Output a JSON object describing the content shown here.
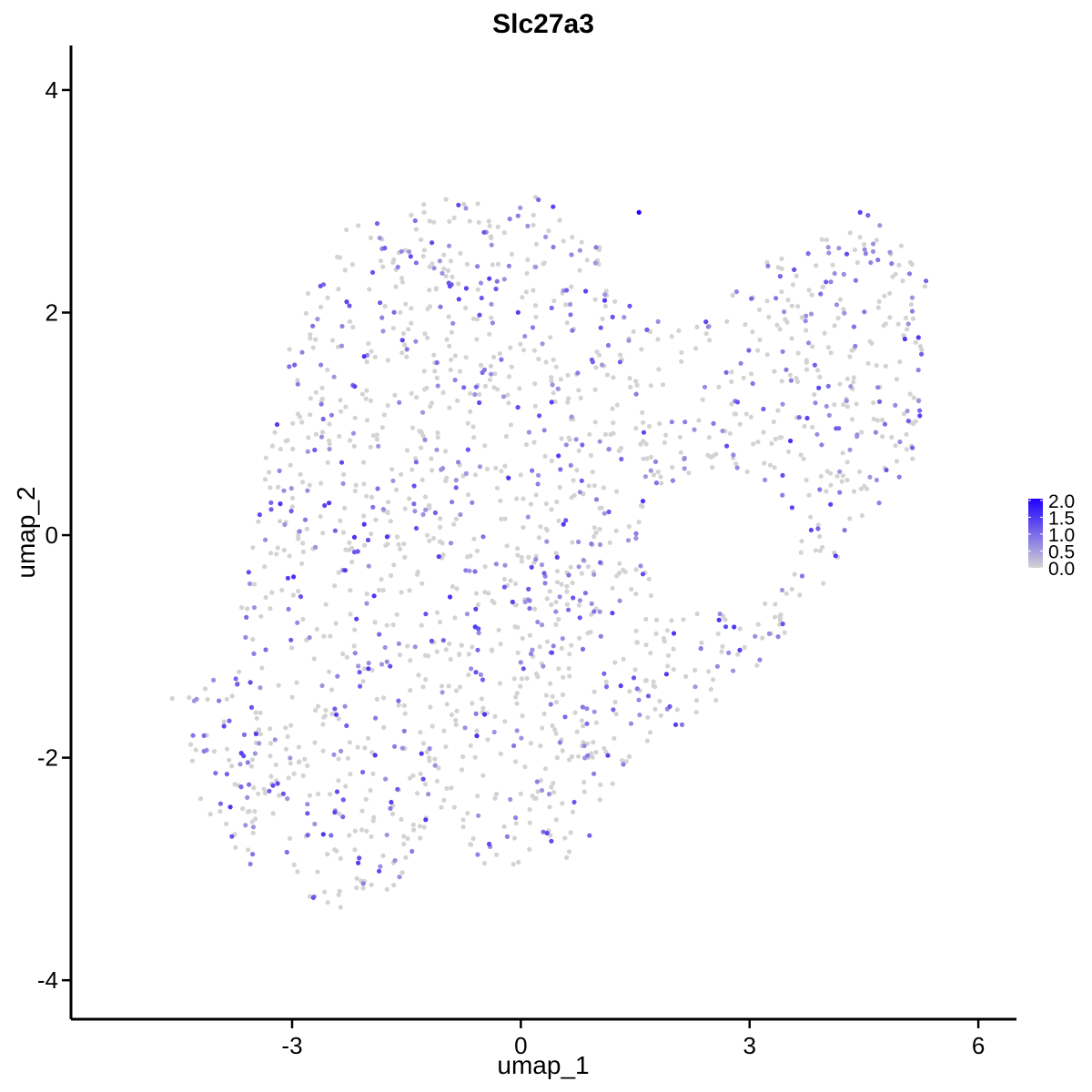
{
  "chart_data": {
    "type": "scatter",
    "title": "Slc27a3",
    "xlabel": "umap_1",
    "ylabel": "umap_2",
    "xlim": [
      -5.9,
      6.5
    ],
    "ylim": [
      -4.35,
      4.4
    ],
    "x_ticks": [
      -3,
      0,
      3,
      6
    ],
    "y_ticks": [
      -4,
      -2,
      0,
      2,
      4
    ],
    "x_tick_labels": [
      "-3",
      "0",
      "3",
      "6"
    ],
    "y_tick_labels": [
      "-4",
      "-2",
      "0",
      "2",
      "4"
    ],
    "grid": false,
    "legend": {
      "placement": "right",
      "type": "color-gradient",
      "breaks": [
        "2.0",
        "1.5",
        "1.0",
        "0.5",
        "0.0"
      ],
      "break_values": [
        2.0,
        1.5,
        1.0,
        0.5,
        0.0
      ],
      "range": [
        0,
        2.05
      ]
    },
    "color_low": "#d3d3d3",
    "color_high": "#1f00ff",
    "points": [
      [
        1.55,
        2.9,
        2.0
      ],
      [
        -0.5,
        -1.3,
        1.1
      ],
      [
        -3.25,
        -2.25,
        1.3
      ],
      [
        -2.0,
        -1.2,
        1.5
      ],
      [
        1.2,
        -0.7,
        1.4
      ],
      [
        -4.3,
        -1.8,
        0.9
      ],
      [
        0.7,
        -2.4,
        1.2
      ],
      [
        2.7,
        0.8,
        1.3
      ],
      [
        0.6,
        2.2,
        1.1
      ],
      [
        4.45,
        2.9,
        1.4
      ],
      [
        -1.1,
        1.55,
        1.0
      ],
      [
        0.9,
        -2.7,
        1.1
      ],
      [
        0.4,
        -2.75,
        1.3
      ],
      [
        -3.3,
        -2.3,
        1.1
      ],
      [
        -1.7,
        -2.4,
        1.4
      ],
      [
        -2.8,
        -2.5,
        1.2
      ]
    ],
    "n_points": 1800,
    "expressed_fraction": 0.34
  }
}
